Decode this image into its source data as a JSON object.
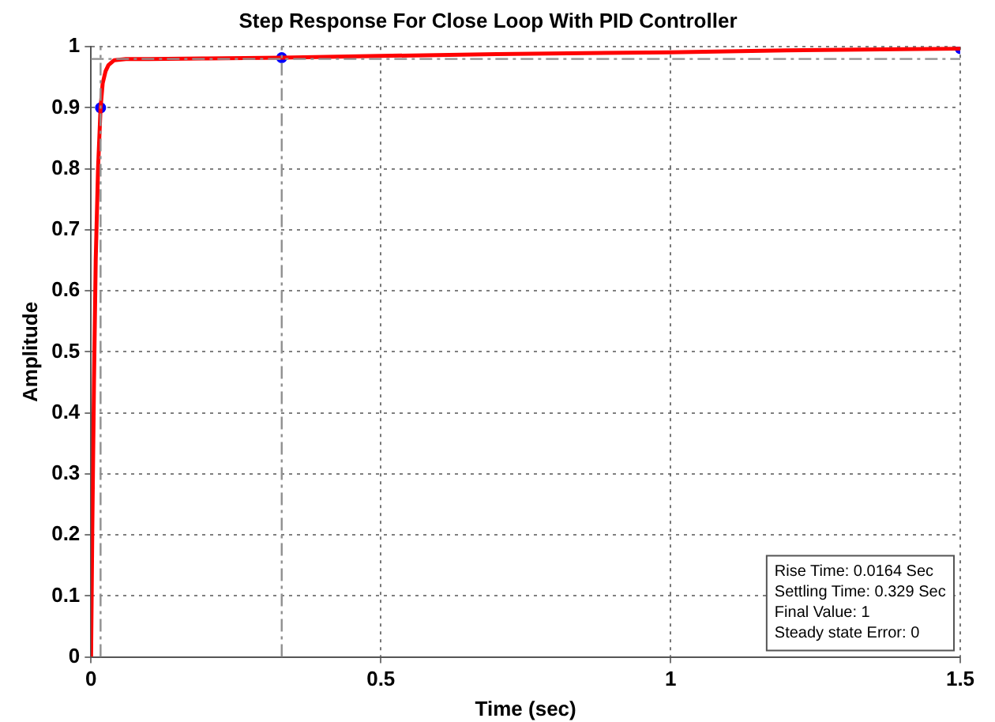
{
  "chart_data": {
    "type": "line",
    "title": "Step Response For Close Loop With PID Controller",
    "xlabel": "Time (sec)",
    "ylabel": "Amplitude",
    "xlim": [
      0,
      1.5
    ],
    "xticks": [
      0,
      0.5,
      1,
      1.5
    ],
    "ylim": [
      0,
      1
    ],
    "yticks": [
      0,
      0.1,
      0.2,
      0.3,
      0.4,
      0.5,
      0.6,
      0.7,
      0.8,
      0.9,
      1
    ],
    "grid": true,
    "legend": false,
    "series": [
      {
        "color": "#ff0000",
        "marker": "none",
        "x": [
          0,
          0.002,
          0.005,
          0.008,
          0.012,
          0.0164,
          0.02,
          0.025,
          0.03,
          0.04,
          0.06,
          0.1,
          0.2,
          0.329,
          0.5,
          0.7,
          1,
          1.2,
          1.5
        ],
        "values": [
          0,
          0.2,
          0.45,
          0.65,
          0.8,
          0.9,
          0.94,
          0.96,
          0.97,
          0.978,
          0.98,
          0.98,
          0.981,
          0.982,
          0.985,
          0.988,
          0.991,
          0.994,
          0.997
        ]
      },
      {
        "type": "scatter",
        "color": "#0000ff",
        "marker": "circle",
        "x": [
          0.0164,
          0.329,
          1.5
        ],
        "values": [
          0.9,
          0.982,
          0.997
        ]
      }
    ],
    "ref_lines": [
      {
        "axis": "x",
        "value": 0.0164,
        "color": "#909090",
        "line_style": "dashed"
      },
      {
        "axis": "x",
        "value": 0.329,
        "color": "#909090",
        "line_style": "dashed"
      },
      {
        "axis": "y",
        "value": 0.98,
        "color": "#909090",
        "line_style": "dashed"
      }
    ],
    "annotations": [
      "Rise Time: 0.0164 Sec",
      "Settling Time: 0.329 Sec",
      "Final Value: 1",
      "Steady state Error: 0"
    ]
  }
}
